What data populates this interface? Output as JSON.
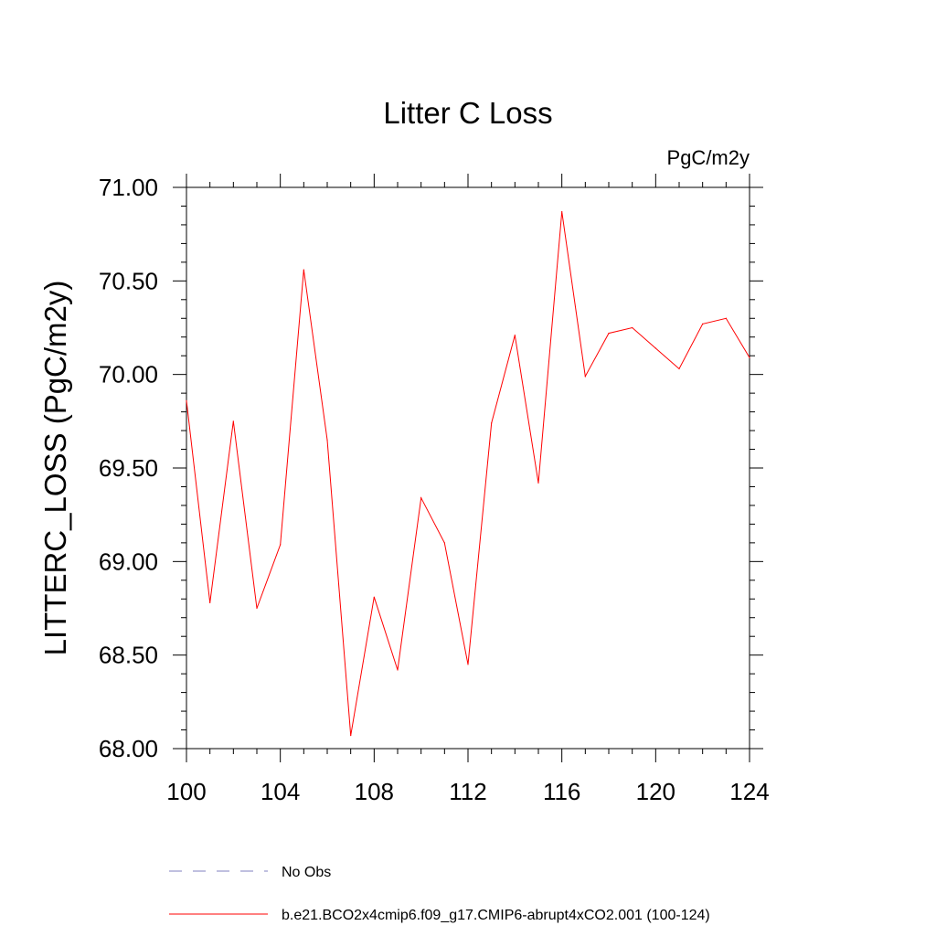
{
  "chart_data": {
    "type": "line",
    "title": "Litter C Loss",
    "units_label": "PgC/m2y",
    "ylabel": "LITTERC_LOSS  (PgC/m2y)",
    "xlabel": "",
    "xlim": [
      100,
      124
    ],
    "ylim": [
      68.0,
      71.0
    ],
    "x_ticks": [
      "100",
      "104",
      "108",
      "112",
      "116",
      "120",
      "124"
    ],
    "y_ticks": [
      "68.00",
      "68.50",
      "69.00",
      "69.50",
      "70.00",
      "70.50",
      "71.00"
    ],
    "grid": false,
    "legend_position": "bottom",
    "series": [
      {
        "name": "b.e21.BCO2x4cmip6.f09_g17.CMIP6-abrupt4xCO2.001 (100-124)",
        "color": "#ff0000",
        "style": "solid",
        "x": [
          100,
          101,
          102,
          103,
          104,
          105,
          106,
          107,
          108,
          109,
          110,
          111,
          112,
          113,
          114,
          115,
          116,
          117,
          118,
          119,
          120,
          121,
          122,
          123,
          124
        ],
        "values": [
          69.86,
          68.78,
          69.75,
          68.75,
          69.09,
          70.56,
          69.65,
          68.07,
          68.81,
          68.42,
          69.34,
          69.1,
          68.45,
          69.74,
          70.21,
          69.42,
          70.87,
          69.99,
          70.22,
          70.25,
          70.14,
          70.03,
          70.27,
          70.3,
          70.09
        ]
      }
    ],
    "legend": [
      {
        "label": "No Obs",
        "color": "#8080c0",
        "style": "dashed"
      },
      {
        "label": "b.e21.BCO2x4cmip6.f09_g17.CMIP6-abrupt4xCO2.001 (100-124)",
        "color": "#ff0000",
        "style": "solid"
      }
    ]
  }
}
